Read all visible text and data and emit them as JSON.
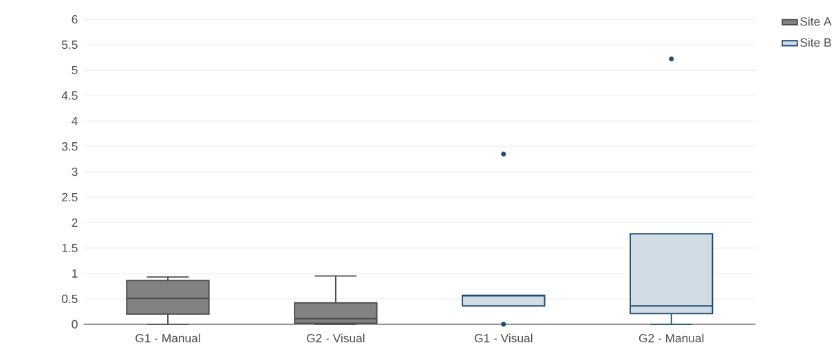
{
  "chart_data": {
    "type": "box",
    "categories": [
      "G1 - Manual",
      "G2 - Visual",
      "G1 - Visual",
      "G2 - Manual"
    ],
    "series": [
      {
        "name": "Site A",
        "color": "#4d4d4d",
        "boxes": [
          {
            "low": 0,
            "q1": 0.2,
            "median": 0.51,
            "q3": 0.86,
            "high": 0.93
          },
          {
            "low": 0,
            "q1": 0.02,
            "median": 0.11,
            "q3": 0.42,
            "high": 0.95
          },
          null,
          null
        ]
      },
      {
        "name": "Site B",
        "color": "#1f4e79",
        "boxes": [
          null,
          null,
          {
            "low": 0.36,
            "q1": 0.36,
            "median": 0.56,
            "q3": 0.57,
            "high": 0.57,
            "outliers": [
              0,
              3.35
            ]
          },
          {
            "low": 0,
            "q1": 0.21,
            "median": 0.36,
            "q3": 1.78,
            "high": 1.78,
            "outliers": [
              5.22
            ]
          }
        ]
      }
    ],
    "ylim": [
      0,
      6
    ],
    "yticks": [
      0,
      0.5,
      1,
      1.5,
      2,
      2.5,
      3,
      3.5,
      4,
      4.5,
      5,
      5.5,
      6
    ],
    "grid": "y",
    "legend": "top right"
  }
}
